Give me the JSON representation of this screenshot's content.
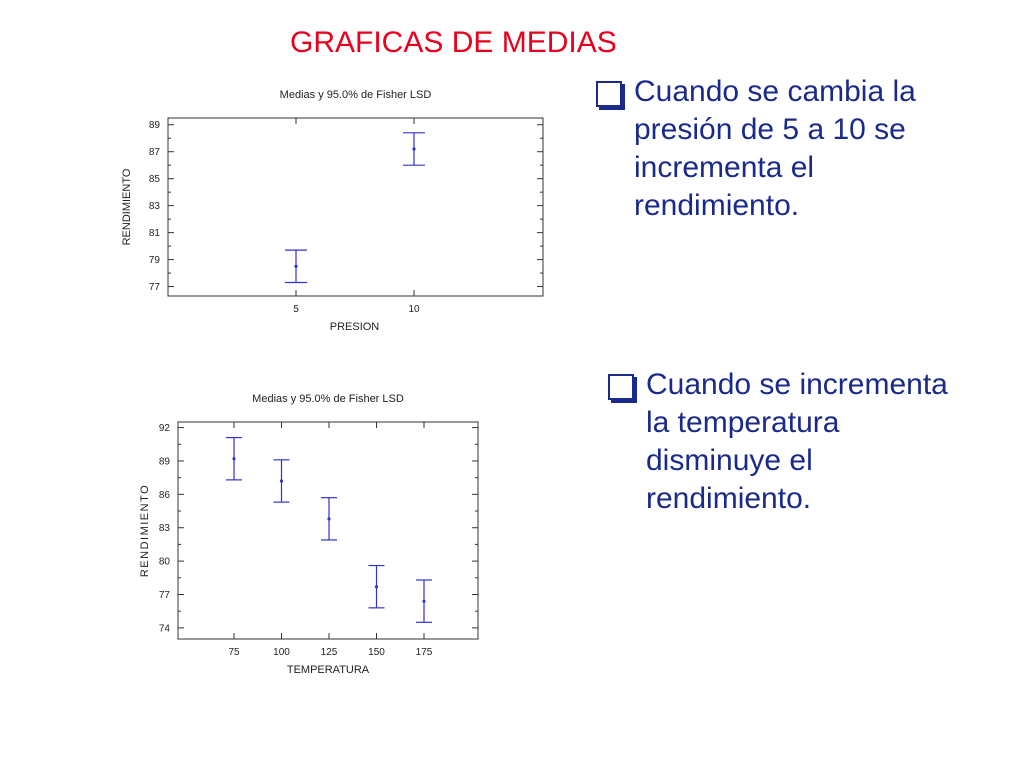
{
  "slide_title": "GRAFICAS DE MEDIAS",
  "bullets": [
    {
      "text": "Cuando se cambia la\npresión de 5 a 10 se\nincrementa el\nrendimiento."
    },
    {
      "text": "Cuando se incrementa\nla temperatura\ndisminuye el\nrendimiento."
    }
  ],
  "colors": {
    "title": "#e8001c",
    "text": "#1a2a8a",
    "series": "#3333cc"
  },
  "chart_data": [
    {
      "type": "scatter",
      "title": "Medias y 95.0% de Fisher LSD",
      "xlabel": "PRESION",
      "ylabel": "RENDIMIENTO",
      "categories": [
        "5",
        "10"
      ],
      "means": [
        78.5,
        87.2
      ],
      "lower": [
        77.3,
        86.0
      ],
      "upper": [
        79.7,
        88.4
      ],
      "ylim": [
        76.3,
        89.5
      ],
      "yticks": [
        "77",
        "79",
        "81",
        "83",
        "85",
        "87",
        "89"
      ]
    },
    {
      "type": "scatter",
      "title": "Medias y 95.0% de Fisher LSD",
      "xlabel": "TEMPERATURA",
      "ylabel": "RENDIMIENTO",
      "categories": [
        "75",
        "100",
        "125",
        "150",
        "175"
      ],
      "means": [
        89.2,
        87.2,
        83.8,
        77.7,
        76.4
      ],
      "lower": [
        87.3,
        85.3,
        81.9,
        75.8,
        74.5
      ],
      "upper": [
        91.1,
        89.1,
        85.7,
        79.6,
        78.3
      ],
      "ylim": [
        73,
        92.5
      ],
      "yticks": [
        "74",
        "77",
        "80",
        "83",
        "86",
        "89",
        "92"
      ]
    }
  ]
}
